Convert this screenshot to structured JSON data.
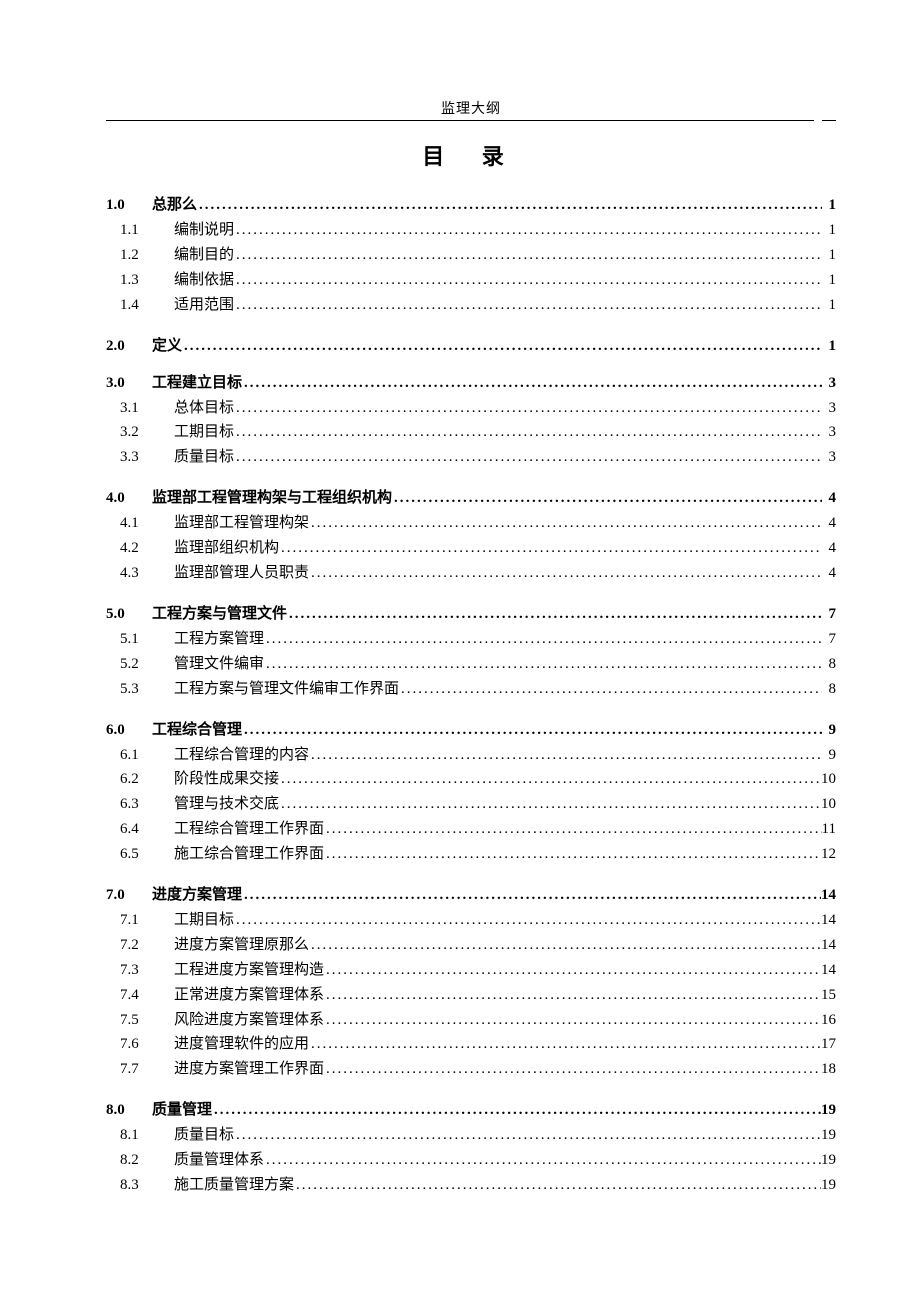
{
  "header": "监理大纲",
  "title": "目  录",
  "dots": "........................................................................................................................................................................................................",
  "toc": [
    {
      "num": "1.0",
      "label": "总那么",
      "page": "1",
      "sub": [
        {
          "num": "1.1",
          "label": "编制说明",
          "page": "1"
        },
        {
          "num": "1.2",
          "label": "编制目的",
          "page": "1"
        },
        {
          "num": "1.3",
          "label": "编制依据",
          "page": "1"
        },
        {
          "num": "1.4",
          "label": "适用范围",
          "page": "1"
        }
      ]
    },
    {
      "num": "2.0",
      "label": "定义",
      "page": "1",
      "sub": []
    },
    {
      "num": "3.0",
      "label": "工程建立目标",
      "page": "3",
      "sub": [
        {
          "num": "3.1",
          "label": "总体目标",
          "page": "3"
        },
        {
          "num": "3.2",
          "label": "工期目标",
          "page": "3"
        },
        {
          "num": "3.3",
          "label": "质量目标",
          "page": "3"
        }
      ]
    },
    {
      "num": "4.0",
      "label": "监理部工程管理构架与工程组织机构",
      "page": "4",
      "sub": [
        {
          "num": "4.1",
          "label": "监理部工程管理构架",
          "page": "4"
        },
        {
          "num": "4.2",
          "label": "监理部组织机构",
          "page": "4"
        },
        {
          "num": "4.3",
          "label": "监理部管理人员职责",
          "page": "4"
        }
      ]
    },
    {
      "num": "5.0",
      "label": "工程方案与管理文件",
      "page": "7",
      "sub": [
        {
          "num": "5.1",
          "label": "工程方案管理",
          "page": "7"
        },
        {
          "num": "5.2",
          "label": "管理文件编审",
          "page": "8"
        },
        {
          "num": "5.3",
          "label": "工程方案与管理文件编审工作界面",
          "page": "8"
        }
      ]
    },
    {
      "num": "6.0",
      "label": "工程综合管理",
      "page": "9",
      "sub": [
        {
          "num": "6.1",
          "label": "工程综合管理的内容",
          "page": "9"
        },
        {
          "num": "6.2",
          "label": "阶段性成果交接",
          "page": "10"
        },
        {
          "num": "6.3",
          "label": "管理与技术交底",
          "page": "10"
        },
        {
          "num": "6.4",
          "label": "工程综合管理工作界面",
          "page": "11"
        },
        {
          "num": "6.5",
          "label": "施工综合管理工作界面",
          "page": "12"
        }
      ]
    },
    {
      "num": "7.0",
      "label": "进度方案管理",
      "page": "14",
      "sub": [
        {
          "num": "7.1",
          "label": "工期目标",
          "page": "14"
        },
        {
          "num": "7.2",
          "label": "进度方案管理原那么",
          "page": "14"
        },
        {
          "num": "7.3",
          "label": "工程进度方案管理构造",
          "page": "14"
        },
        {
          "num": "7.4",
          "label": "正常进度方案管理体系",
          "page": "15"
        },
        {
          "num": "7.5",
          "label": "风险进度方案管理体系",
          "page": "16"
        },
        {
          "num": "7.6",
          "label": "进度管理软件的应用",
          "page": "17"
        },
        {
          "num": "7.7",
          "label": "进度方案管理工作界面",
          "page": "18"
        }
      ]
    },
    {
      "num": "8.0",
      "label": "质量管理",
      "page": "19",
      "sub": [
        {
          "num": "8.1",
          "label": "质量目标",
          "page": "19"
        },
        {
          "num": "8.2",
          "label": "质量管理体系",
          "page": "19"
        },
        {
          "num": "8.3",
          "label": "施工质量管理方案",
          "page": "19"
        }
      ]
    }
  ]
}
